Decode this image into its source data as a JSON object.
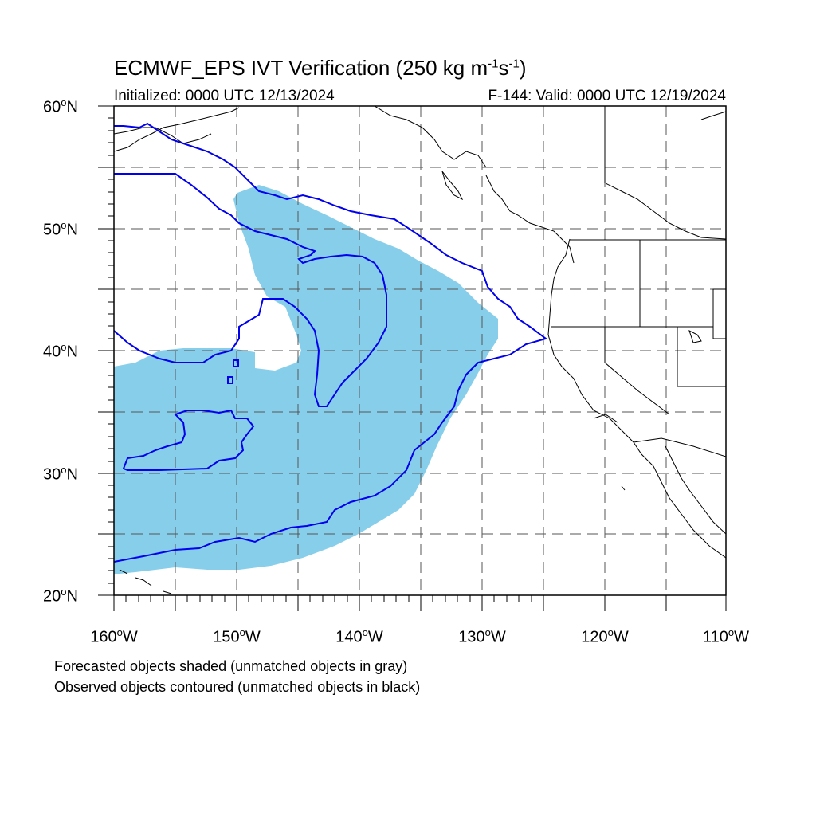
{
  "title": {
    "main": "ECMWF_EPS IVT Verification (250 kg m",
    "sup1": "-1",
    "mid": "s",
    "sup2": "-1",
    "end": ")"
  },
  "subtitle": {
    "left": "Initialized: 0000 UTC 12/13/2024",
    "right": "F-144: Valid: 0000 UTC 12/19/2024"
  },
  "axes": {
    "lat_labels": [
      {
        "deg": "60",
        "hem": "N"
      },
      {
        "deg": "50",
        "hem": "N"
      },
      {
        "deg": "40",
        "hem": "N"
      },
      {
        "deg": "30",
        "hem": "N"
      },
      {
        "deg": "20",
        "hem": "N"
      }
    ],
    "lon_labels": [
      {
        "deg": "160",
        "hem": "W"
      },
      {
        "deg": "150",
        "hem": "W"
      },
      {
        "deg": "140",
        "hem": "W"
      },
      {
        "deg": "130",
        "hem": "W"
      },
      {
        "deg": "120",
        "hem": "W"
      },
      {
        "deg": "110",
        "hem": "W"
      }
    ],
    "lat_range": [
      20,
      60
    ],
    "lon_range": [
      -160,
      -110
    ],
    "grid_interval_deg": 5,
    "grid": true
  },
  "legend": {
    "line1": "Forecasted objects shaded (unmatched objects in gray)",
    "line2": "Observed objects contoured (unmatched objects in black)"
  },
  "colors": {
    "forecast_fill": "#87ceeb",
    "observed_contour": "#0000ee",
    "coastline": "#000000",
    "grid": "#555555"
  }
}
